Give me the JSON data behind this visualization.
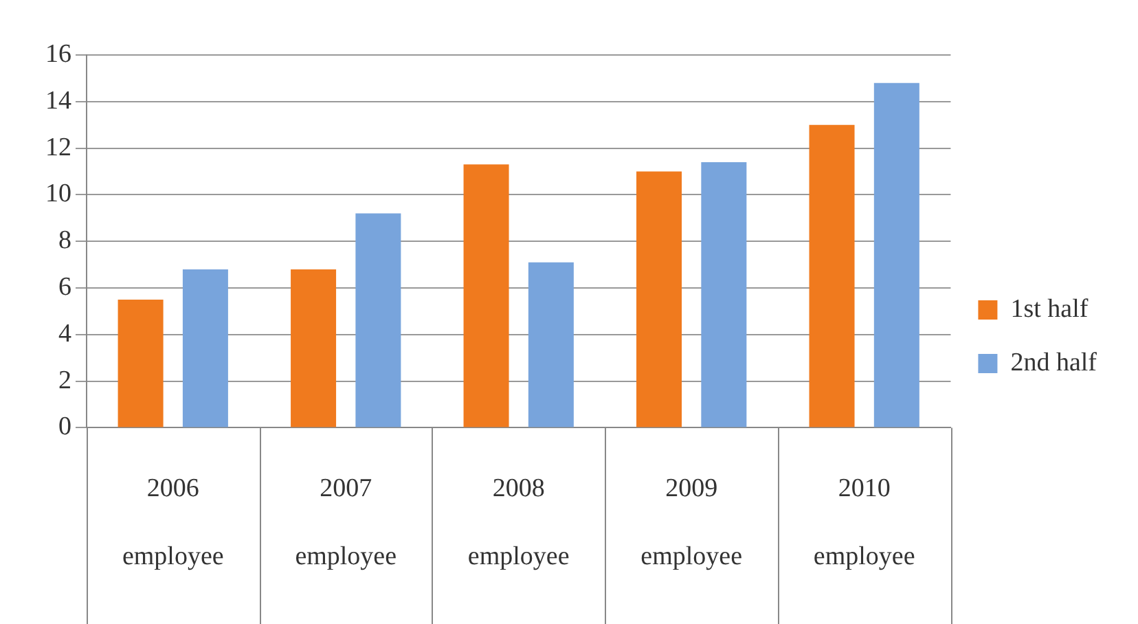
{
  "chart_data": {
    "type": "bar",
    "categories": [
      "2006\nemployee",
      "2007\nemployee",
      "2008\nemployee",
      "2009\nemployee",
      "2010\nemployee"
    ],
    "series": [
      {
        "name": "1st half",
        "color": "#f07a1e",
        "values": [
          5.5,
          6.8,
          11.3,
          11,
          13
        ]
      },
      {
        "name": "2nd half",
        "color": "#78a4dc",
        "values": [
          6.8,
          9.2,
          7.1,
          11.4,
          14.8
        ]
      }
    ],
    "ylim": [
      0,
      16
    ],
    "yticks": [
      0,
      2,
      4,
      6,
      8,
      10,
      12,
      14,
      16
    ],
    "grid": "y",
    "legend": "right"
  }
}
